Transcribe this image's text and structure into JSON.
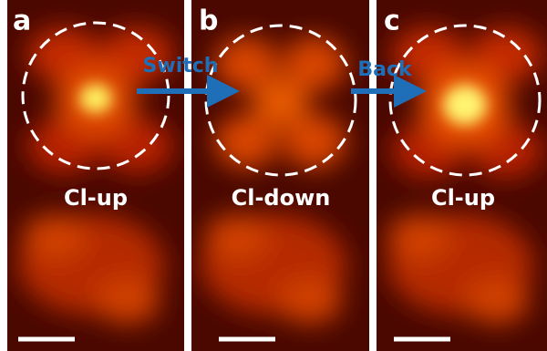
{
  "panels": [
    {
      "letter": "a",
      "label": "Cl-up"
    },
    {
      "letter": "b",
      "label": "Cl-down"
    },
    {
      "letter": "c",
      "label": "Cl-up"
    }
  ],
  "arrows": [
    {
      "label": "Switch"
    },
    {
      "label": "Back"
    }
  ]
}
